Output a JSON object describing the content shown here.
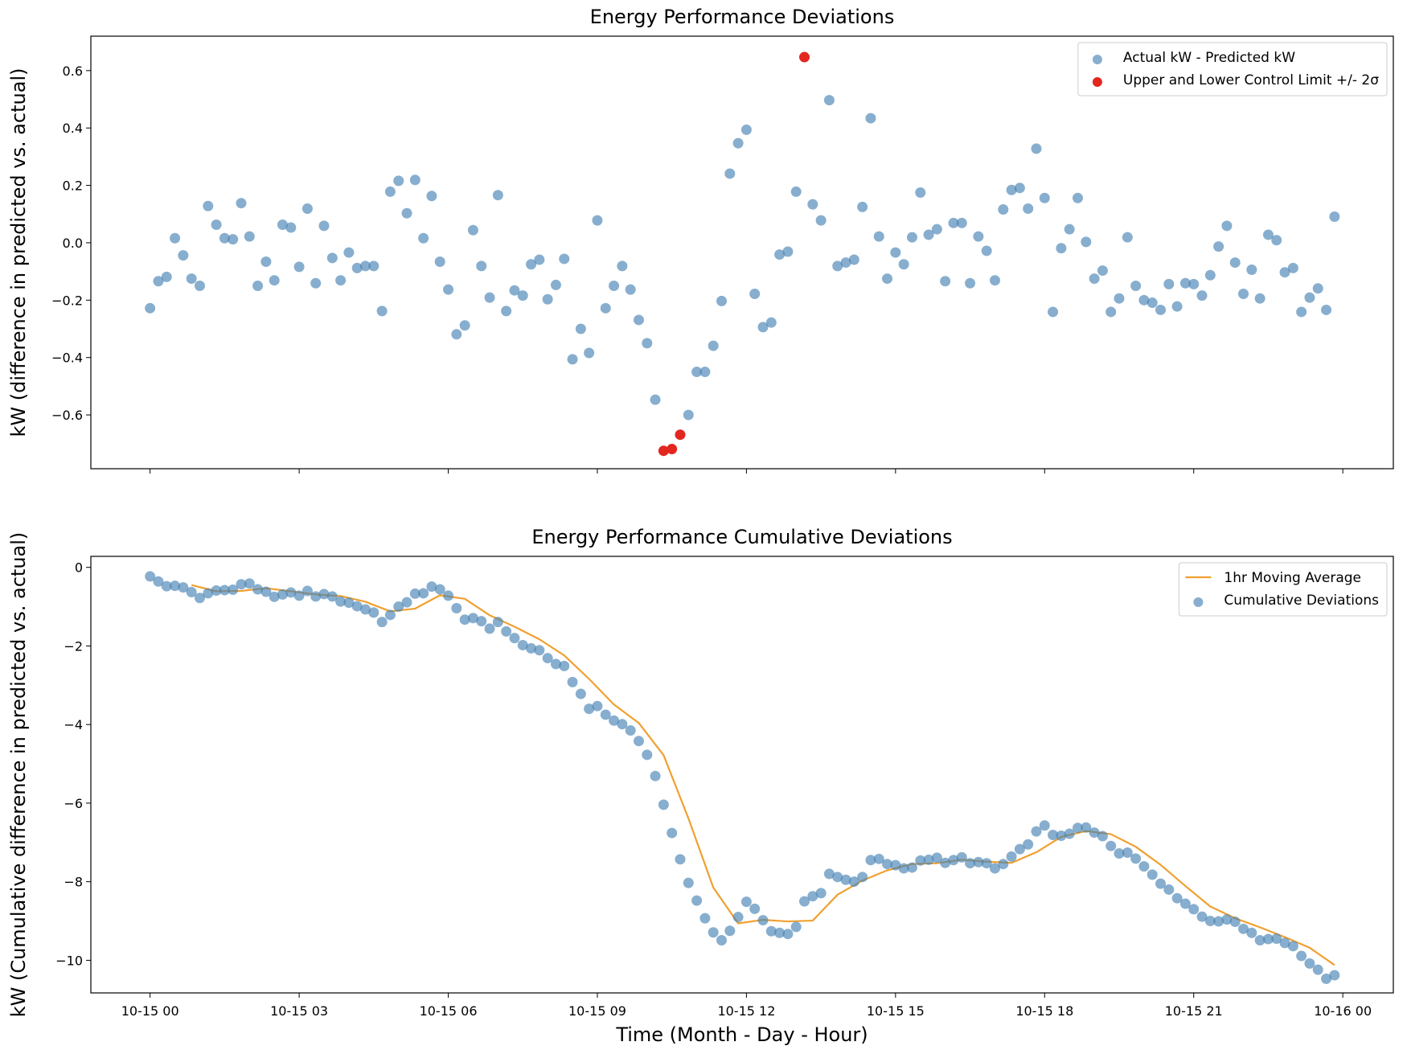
{
  "chart_data": [
    {
      "type": "scatter",
      "title": "Energy Performance Deviations",
      "y_label": "kW (difference in predicted vs. actual)",
      "xlim": [
        -71.5,
        1501
      ],
      "ylim": [
        -0.7875,
        0.72
      ],
      "yticks": [
        {
          "value": -0.6,
          "label": "−0.6"
        },
        {
          "value": -0.4,
          "label": "−0.4"
        },
        {
          "value": -0.2,
          "label": "−0.2"
        },
        {
          "value": 0,
          "label": "0.0"
        },
        0.2,
        0.4,
        0.6
      ],
      "legend": "upper right",
      "series": [
        {
          "name": "Actual kW - Predicted kW",
          "type": "scatter",
          "color": "#4682b4",
          "alpha": 0.65,
          "x": [
            0,
            10,
            20,
            30,
            40,
            50,
            60,
            70,
            80,
            90,
            100,
            110,
            120,
            130,
            140,
            150,
            160,
            170,
            180,
            190,
            200,
            210,
            220,
            230,
            240,
            250,
            260,
            270,
            280,
            290,
            300,
            310,
            320,
            330,
            340,
            350,
            360,
            370,
            380,
            390,
            400,
            410,
            420,
            430,
            440,
            450,
            460,
            470,
            480,
            490,
            500,
            510,
            520,
            530,
            540,
            550,
            560,
            570,
            580,
            590,
            600,
            610,
            650,
            660,
            670,
            680,
            690,
            700,
            710,
            720,
            730,
            740,
            750,
            760,
            770,
            780,
            800,
            810,
            820,
            830,
            840,
            850,
            860,
            870,
            880,
            890,
            900,
            910,
            920,
            930,
            940,
            950,
            960,
            970,
            980,
            990,
            1000,
            1010,
            1020,
            1030,
            1040,
            1050,
            1060,
            1070,
            1080,
            1090,
            1100,
            1110,
            1120,
            1130,
            1140,
            1150,
            1160,
            1170,
            1180,
            1190,
            1200,
            1210,
            1220,
            1230,
            1240,
            1250,
            1260,
            1270,
            1280,
            1290,
            1300,
            1310,
            1320,
            1330,
            1340,
            1350,
            1360,
            1370,
            1380,
            1390,
            1400,
            1410,
            1420,
            1430
          ],
          "values": [
            -0.228,
            -0.134,
            -0.119,
            0.016,
            -0.044,
            -0.125,
            -0.15,
            0.128,
            0.063,
            0.016,
            0.012,
            0.138,
            0.022,
            -0.15,
            -0.066,
            -0.131,
            0.063,
            0.053,
            -0.084,
            0.119,
            -0.141,
            0.059,
            -0.053,
            -0.131,
            -0.034,
            -0.088,
            -0.081,
            -0.081,
            -0.238,
            0.178,
            0.216,
            0.103,
            0.219,
            0.016,
            0.163,
            -0.066,
            -0.163,
            -0.319,
            -0.288,
            0.044,
            -0.081,
            -0.191,
            0.166,
            -0.238,
            -0.166,
            -0.184,
            -0.075,
            -0.059,
            -0.197,
            -0.147,
            -0.056,
            -0.406,
            -0.3,
            -0.384,
            0.078,
            -0.228,
            -0.15,
            -0.081,
            -0.163,
            -0.269,
            -0.35,
            -0.547,
            -0.6,
            -0.45,
            -0.45,
            -0.359,
            -0.203,
            0.241,
            0.347,
            0.394,
            -0.178,
            -0.294,
            -0.278,
            -0.041,
            -0.031,
            0.178,
            0.134,
            0.078,
            0.497,
            -0.081,
            -0.069,
            -0.059,
            0.125,
            0.434,
            0.022,
            -0.125,
            -0.034,
            -0.075,
            0.019,
            0.175,
            0.028,
            0.047,
            -0.134,
            0.069,
            0.069,
            -0.141,
            0.022,
            -0.028,
            -0.131,
            0.116,
            0.184,
            0.191,
            0.119,
            0.328,
            0.156,
            -0.241,
            -0.019,
            0.047,
            0.156,
            0.003,
            -0.125,
            -0.097,
            -0.241,
            -0.194,
            0.019,
            -0.15,
            -0.2,
            -0.209,
            -0.234,
            -0.144,
            -0.222,
            -0.141,
            -0.144,
            -0.184,
            -0.113,
            -0.013,
            0.059,
            -0.069,
            -0.178,
            -0.094,
            -0.194,
            0.028,
            0.009,
            -0.103,
            -0.088,
            -0.241,
            -0.191,
            -0.159,
            -0.234,
            0.091
          ]
        },
        {
          "name": "Upper and Lower Control Limit +/- 2σ",
          "type": "scatter",
          "color": "#e3261f",
          "alpha": 1,
          "x": [
            620,
            630,
            640,
            790
          ],
          "values": [
            -0.725,
            -0.719,
            -0.669,
            0.647
          ]
        }
      ]
    },
    {
      "type": "combo",
      "title": "Energy Performance Cumulative Deviations",
      "x_label": "Time (Month - Day - Hour)",
      "y_label": "kW (Cumulative difference in predicted vs. actual)",
      "xlim": [
        -71.5,
        1501
      ],
      "ylim": [
        -10.83,
        0.28
      ],
      "xticks": [
        {
          "value": 0,
          "label": "10-15 00"
        },
        {
          "value": 180,
          "label": "10-15 03"
        },
        {
          "value": 360,
          "label": "10-15 06"
        },
        {
          "value": 540,
          "label": "10-15 09"
        },
        {
          "value": 720,
          "label": "10-15 12"
        },
        {
          "value": 900,
          "label": "10-15 15"
        },
        {
          "value": 1080,
          "label": "10-15 18"
        },
        {
          "value": 1260,
          "label": "10-15 21"
        },
        {
          "value": 1440,
          "label": "10-16 00"
        }
      ],
      "yticks": [
        {
          "value": -10,
          "label": "−10"
        },
        {
          "value": -8,
          "label": "−8"
        },
        {
          "value": -6,
          "label": "−6"
        },
        {
          "value": -4,
          "label": "−4"
        },
        {
          "value": -2,
          "label": "−2"
        },
        0
      ],
      "legend": "upper right",
      "series": [
        {
          "name": "1hr Moving Average",
          "type": "line",
          "color": "#f0a030",
          "alpha": 1,
          "x": [
            50,
            80,
            110,
            140,
            170,
            200,
            230,
            260,
            290,
            320,
            350,
            380,
            410,
            440,
            470,
            500,
            530,
            560,
            590,
            620,
            650,
            680,
            710,
            740,
            770,
            800,
            830,
            860,
            890,
            920,
            950,
            980,
            1010,
            1040,
            1070,
            1100,
            1130,
            1160,
            1190,
            1220,
            1250,
            1280,
            1310,
            1340,
            1370,
            1400,
            1430
          ],
          "values": [
            -0.45,
            -0.61,
            -0.6,
            -0.53,
            -0.61,
            -0.69,
            -0.73,
            -0.875,
            -1.12,
            -1.05,
            -0.71,
            -0.8,
            -1.22,
            -1.51,
            -1.83,
            -2.24,
            -2.84,
            -3.49,
            -3.96,
            -4.78,
            -6.39,
            -8.15,
            -9.06,
            -8.97,
            -9.01,
            -8.99,
            -8.33,
            -7.97,
            -7.71,
            -7.55,
            -7.53,
            -7.44,
            -7.49,
            -7.52,
            -7.25,
            -6.86,
            -6.71,
            -6.79,
            -7.11,
            -7.57,
            -8.11,
            -8.63,
            -8.93,
            -9.16,
            -9.41,
            -9.68,
            -10.12
          ]
        },
        {
          "name": "Cumulative Deviations",
          "type": "scatter",
          "color": "#4682b4",
          "alpha": 0.65,
          "x": [
            0,
            10,
            20,
            30,
            40,
            50,
            60,
            70,
            80,
            90,
            100,
            110,
            120,
            130,
            140,
            150,
            160,
            170,
            180,
            190,
            200,
            210,
            220,
            230,
            240,
            250,
            260,
            270,
            280,
            290,
            300,
            310,
            320,
            330,
            340,
            350,
            360,
            370,
            380,
            390,
            400,
            410,
            420,
            430,
            440,
            450,
            460,
            470,
            480,
            490,
            500,
            510,
            520,
            530,
            540,
            550,
            560,
            570,
            580,
            590,
            600,
            610,
            620,
            630,
            640,
            650,
            660,
            670,
            680,
            690,
            700,
            710,
            720,
            730,
            740,
            750,
            760,
            770,
            780,
            790,
            800,
            810,
            820,
            830,
            840,
            850,
            860,
            870,
            880,
            890,
            900,
            910,
            920,
            930,
            940,
            950,
            960,
            970,
            980,
            990,
            1000,
            1010,
            1020,
            1030,
            1040,
            1050,
            1060,
            1070,
            1080,
            1090,
            1100,
            1110,
            1120,
            1130,
            1140,
            1150,
            1160,
            1170,
            1180,
            1190,
            1200,
            1210,
            1220,
            1230,
            1240,
            1250,
            1260,
            1270,
            1280,
            1290,
            1300,
            1310,
            1320,
            1330,
            1340,
            1350,
            1360,
            1370,
            1380,
            1390,
            1400,
            1410,
            1420,
            1430
          ],
          "values": [
            -0.23,
            -0.36,
            -0.48,
            -0.47,
            -0.51,
            -0.63,
            -0.78,
            -0.66,
            -0.59,
            -0.58,
            -0.57,
            -0.43,
            -0.41,
            -0.56,
            -0.62,
            -0.75,
            -0.69,
            -0.64,
            -0.72,
            -0.6,
            -0.74,
            -0.68,
            -0.74,
            -0.87,
            -0.9,
            -0.99,
            -1.07,
            -1.15,
            -1.39,
            -1.21,
            -1,
            -0.89,
            -0.67,
            -0.66,
            -0.49,
            -0.56,
            -0.72,
            -1.04,
            -1.33,
            -1.29,
            -1.37,
            -1.56,
            -1.39,
            -1.63,
            -1.8,
            -1.98,
            -2.06,
            -2.11,
            -2.31,
            -2.46,
            -2.51,
            -2.92,
            -3.22,
            -3.6,
            -3.53,
            -3.75,
            -3.9,
            -3.99,
            -4.15,
            -4.42,
            -4.77,
            -5.31,
            -6.04,
            -6.76,
            -7.43,
            -8.03,
            -8.48,
            -8.93,
            -9.29,
            -9.49,
            -9.25,
            -8.9,
            -8.51,
            -8.69,
            -8.98,
            -9.26,
            -9.3,
            -9.33,
            -9.15,
            -8.5,
            -8.37,
            -8.29,
            -7.8,
            -7.88,
            -7.95,
            -8,
            -7.88,
            -7.45,
            -7.42,
            -7.55,
            -7.58,
            -7.66,
            -7.64,
            -7.46,
            -7.44,
            -7.39,
            -7.52,
            -7.45,
            -7.38,
            -7.53,
            -7.5,
            -7.53,
            -7.66,
            -7.55,
            -7.36,
            -7.17,
            -7.05,
            -6.72,
            -6.57,
            -6.81,
            -6.83,
            -6.78,
            -6.63,
            -6.62,
            -6.75,
            -6.84,
            -7.09,
            -7.28,
            -7.26,
            -7.41,
            -7.61,
            -7.82,
            -8.05,
            -8.2,
            -8.42,
            -8.56,
            -8.7,
            -8.89,
            -9,
            -9.01,
            -8.96,
            -9.02,
            -9.2,
            -9.3,
            -9.49,
            -9.46,
            -9.45,
            -9.56,
            -9.64,
            -9.89,
            -10.08,
            -10.24,
            -10.47,
            -10.38
          ]
        }
      ]
    }
  ]
}
